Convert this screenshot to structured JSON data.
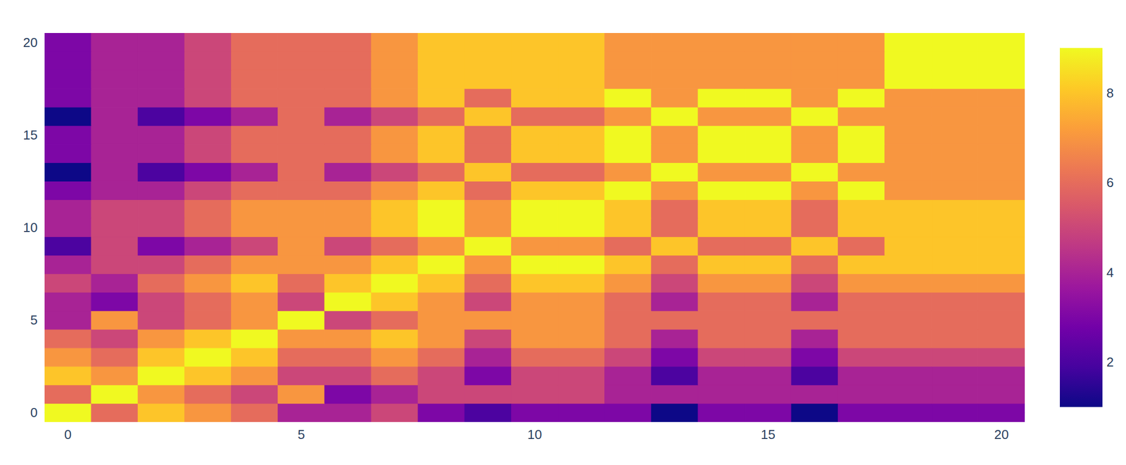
{
  "chart_data": {
    "type": "heatmap",
    "x": [
      0,
      1,
      2,
      3,
      4,
      5,
      6,
      7,
      8,
      9,
      10,
      11,
      12,
      13,
      14,
      15,
      16,
      17,
      18,
      19,
      20
    ],
    "y": [
      0,
      1,
      2,
      3,
      4,
      5,
      6,
      7,
      8,
      9,
      10,
      11,
      12,
      13,
      14,
      15,
      16,
      17,
      18,
      19,
      20
    ],
    "z": [
      [
        9,
        6,
        8,
        7,
        6,
        4,
        4,
        5,
        3,
        2,
        3,
        3,
        3,
        1,
        3,
        3,
        1,
        3,
        3,
        3,
        3
      ],
      [
        6,
        9,
        7,
        6,
        5,
        7,
        3,
        4,
        5,
        5,
        5,
        5,
        4,
        4,
        4,
        4,
        4,
        4,
        4,
        4,
        4
      ],
      [
        8,
        7,
        9,
        8,
        7,
        5,
        5,
        6,
        5,
        3,
        5,
        5,
        4,
        2,
        4,
        4,
        2,
        4,
        4,
        4,
        4
      ],
      [
        7,
        6,
        8,
        9,
        8,
        6,
        6,
        7,
        6,
        4,
        6,
        6,
        5,
        3,
        5,
        5,
        3,
        5,
        5,
        5,
        5
      ],
      [
        6,
        5,
        7,
        8,
        9,
        7,
        7,
        8,
        7,
        5,
        7,
        7,
        6,
        4,
        6,
        6,
        4,
        6,
        6,
        6,
        6
      ],
      [
        4,
        7,
        5,
        6,
        7,
        9,
        5,
        6,
        7,
        7,
        7,
        7,
        6,
        6,
        6,
        6,
        6,
        6,
        6,
        6,
        6
      ],
      [
        4,
        3,
        5,
        6,
        7,
        5,
        9,
        8,
        7,
        5,
        7,
        7,
        6,
        4,
        6,
        6,
        4,
        6,
        6,
        6,
        6
      ],
      [
        5,
        4,
        6,
        7,
        8,
        6,
        8,
        9,
        8,
        6,
        8,
        8,
        7,
        5,
        7,
        7,
        5,
        7,
        7,
        7,
        7
      ],
      [
        4,
        5,
        5,
        6,
        7,
        7,
        7,
        8,
        9,
        7,
        9,
        9,
        8,
        6,
        8,
        8,
        6,
        8,
        8,
        8,
        8
      ],
      [
        2,
        5,
        3,
        4,
        5,
        7,
        5,
        6,
        7,
        9,
        7,
        7,
        6,
        8,
        6,
        6,
        8,
        6,
        8,
        8,
        8
      ],
      [
        4,
        5,
        5,
        6,
        7,
        7,
        7,
        8,
        9,
        7,
        9,
        9,
        8,
        6,
        8,
        8,
        6,
        8,
        8,
        8,
        8
      ],
      [
        4,
        5,
        5,
        6,
        7,
        7,
        7,
        8,
        9,
        7,
        9,
        9,
        8,
        6,
        8,
        8,
        6,
        8,
        8,
        8,
        8
      ],
      [
        3,
        4,
        4,
        5,
        6,
        6,
        6,
        7,
        8,
        6,
        8,
        8,
        9,
        7,
        9,
        9,
        7,
        9,
        7,
        7,
        7
      ],
      [
        1,
        4,
        2,
        3,
        4,
        6,
        4,
        5,
        6,
        8,
        6,
        6,
        7,
        9,
        7,
        7,
        9,
        7,
        7,
        7,
        7
      ],
      [
        3,
        4,
        4,
        5,
        6,
        6,
        6,
        7,
        8,
        6,
        8,
        8,
        9,
        7,
        9,
        9,
        7,
        9,
        7,
        7,
        7
      ],
      [
        3,
        4,
        4,
        5,
        6,
        6,
        6,
        7,
        8,
        6,
        8,
        8,
        9,
        7,
        9,
        9,
        7,
        9,
        7,
        7,
        7
      ],
      [
        1,
        4,
        2,
        3,
        4,
        6,
        4,
        5,
        6,
        8,
        6,
        6,
        7,
        9,
        7,
        7,
        9,
        7,
        7,
        7,
        7
      ],
      [
        3,
        4,
        4,
        5,
        6,
        6,
        6,
        7,
        8,
        6,
        8,
        8,
        9,
        7,
        9,
        9,
        7,
        9,
        7,
        7,
        7
      ],
      [
        3,
        4,
        4,
        5,
        6,
        6,
        6,
        7,
        8,
        8,
        8,
        8,
        7,
        7,
        7,
        7,
        7,
        7,
        9,
        9,
        9
      ],
      [
        3,
        4,
        4,
        5,
        6,
        6,
        6,
        7,
        8,
        8,
        8,
        8,
        7,
        7,
        7,
        7,
        7,
        7,
        9,
        9,
        9
      ],
      [
        3,
        4,
        4,
        5,
        6,
        6,
        6,
        7,
        8,
        8,
        8,
        8,
        7,
        7,
        7,
        7,
        7,
        7,
        9,
        9,
        9
      ]
    ],
    "xlim": [
      -0.5,
      20.5
    ],
    "ylim": [
      -0.5,
      20.5
    ],
    "xticks": [
      0,
      5,
      10,
      15,
      20
    ],
    "yticks": [
      0,
      5,
      10,
      15,
      20
    ],
    "zlim": [
      1,
      9
    ],
    "zticks": [
      2,
      4,
      6,
      8
    ]
  }
}
